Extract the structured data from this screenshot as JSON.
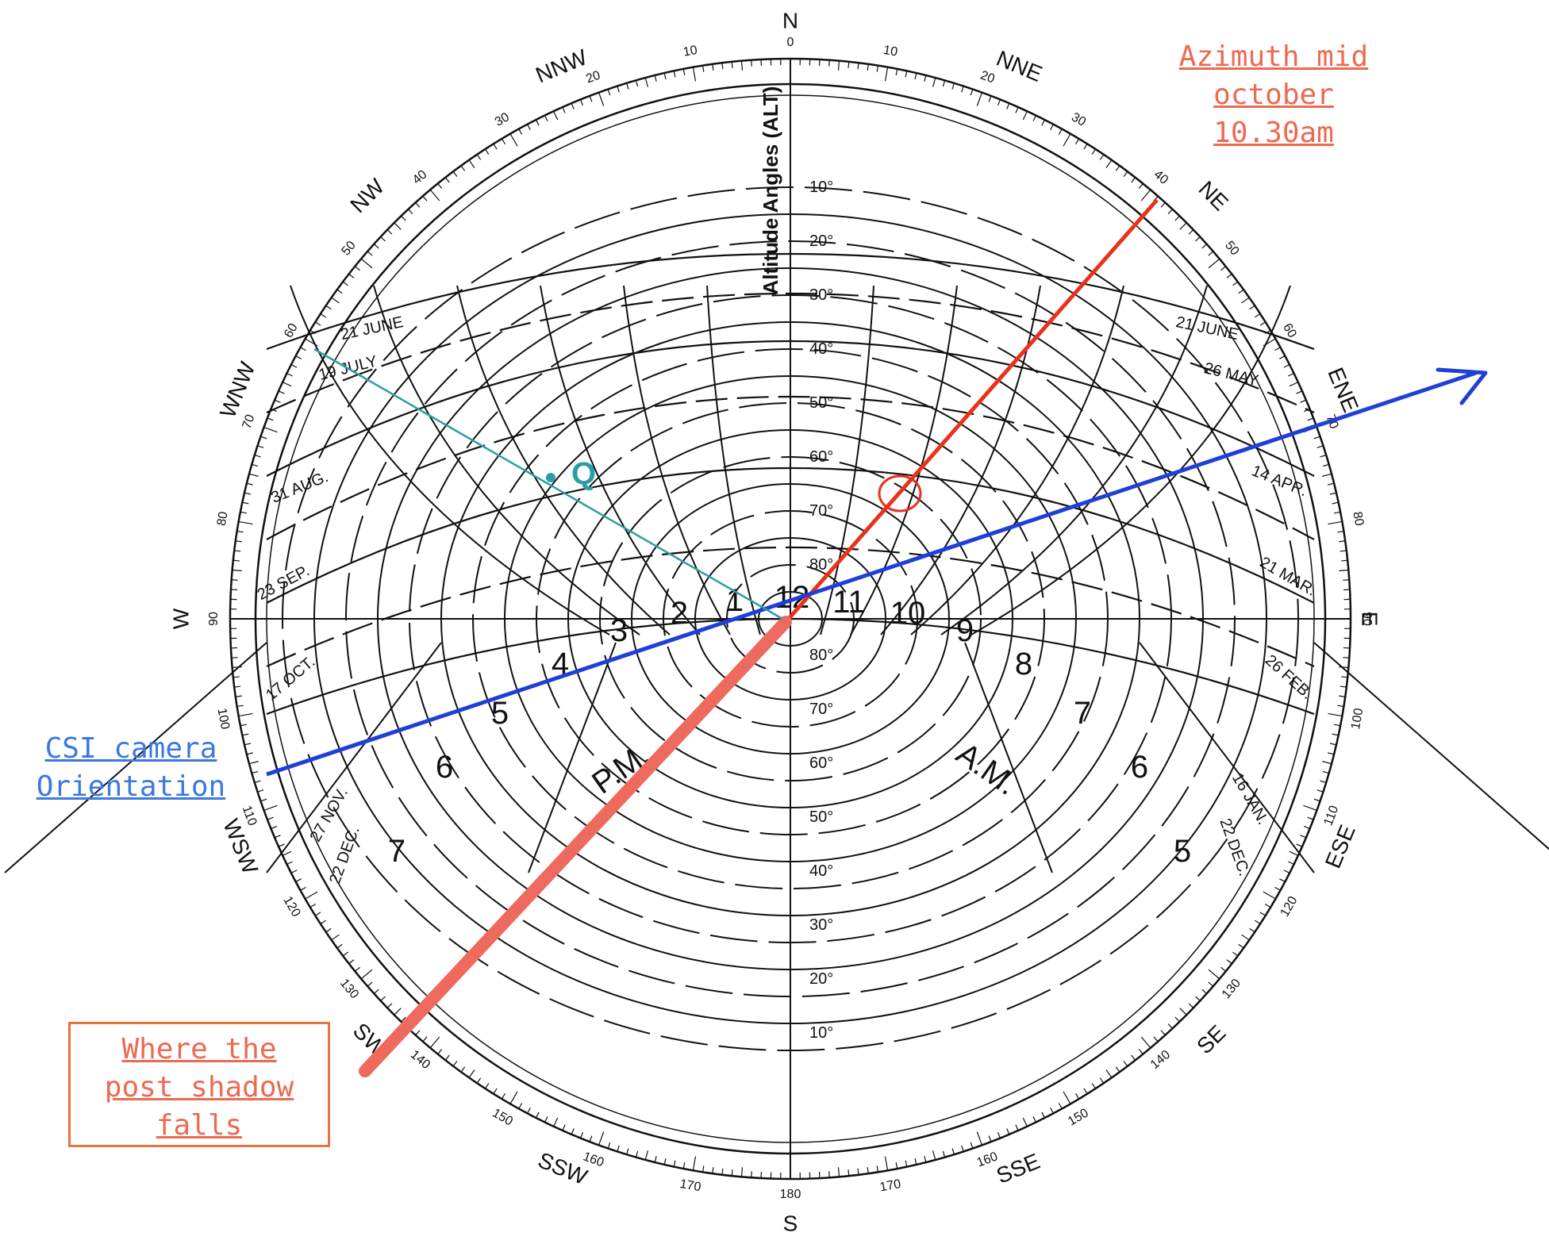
{
  "title": "Altitude Angles (ALT)",
  "compass_points": {
    "N": "N",
    "NNE": "NNE",
    "NE": "NE",
    "ENE": "ENE",
    "E": "E",
    "ESE": "ESE",
    "SE": "SE",
    "SSE": "SSE",
    "S": "S",
    "SSW": "SSW",
    "SW": "SW",
    "WSW": "WSW",
    "W": "W",
    "WNW": "WNW",
    "NW": "NW",
    "NNW": "NNW"
  },
  "azimuth_ticks": [
    "0",
    "10",
    "20",
    "30",
    "40",
    "50",
    "60",
    "70",
    "80",
    "90",
    "100",
    "110",
    "120",
    "130",
    "140",
    "150",
    "160",
    "170",
    "180"
  ],
  "altitude_upper": [
    "10°",
    "20°",
    "30°",
    "40°",
    "50°",
    "60°",
    "70°",
    "80°"
  ],
  "altitude_lower": [
    "80°",
    "70°",
    "60°",
    "50°",
    "40°",
    "30°",
    "20°",
    "10°"
  ],
  "date_lines": {
    "left": [
      "21 JUNE",
      "19 JULY",
      "31 AUG.",
      "23 SEP.",
      "17 OCT.",
      "27 NOV.",
      "22 DEC."
    ],
    "right": [
      "21 JUNE",
      "26 MAY",
      "14 APR.",
      "21 MAR.",
      "26 FEB.",
      "16 JAN.",
      "22 DEC."
    ]
  },
  "hours": [
    "12",
    "1",
    "2",
    "3",
    "4",
    "5",
    "6",
    "7",
    "11",
    "10",
    "9",
    "8",
    "7",
    "6",
    "5"
  ],
  "am_pm": {
    "pm": "P.M.",
    "am": "A.M."
  },
  "point_label": "Q",
  "annotations": {
    "azimuth": [
      "Azimuth mid",
      "october",
      "10.30am"
    ],
    "camera": [
      "CSI camera",
      "Orientation"
    ],
    "shadow": [
      "Where the",
      "post shadow",
      "falls"
    ]
  },
  "colors": {
    "azimuth_line": "#e8321b",
    "shadow_line": "#ee6a5e",
    "camera_line": "#1f3fd6",
    "q_line": "#2a9fa6",
    "note_red": "#ec6a52",
    "note_blue": "#3b78e0",
    "box_orange": "#e9733f"
  }
}
